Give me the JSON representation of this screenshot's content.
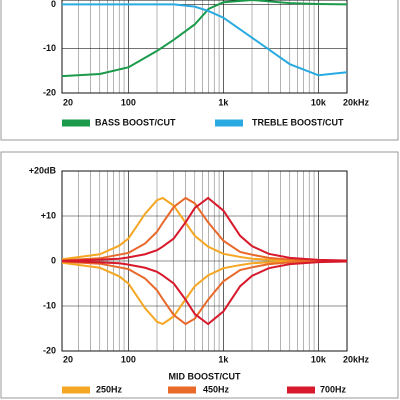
{
  "chart_data": [
    {
      "type": "line",
      "log_x": true,
      "grid": true,
      "minor_grid": true,
      "legend": "bottom",
      "xlim": [
        20,
        20000
      ],
      "ylim": [
        -20,
        1
      ],
      "xticks": [
        20,
        100,
        {
          "value": 1000,
          "label": "1k"
        },
        {
          "value": 10000,
          "label": "10k"
        },
        {
          "value": 20000,
          "label": "20kHz"
        }
      ],
      "yticks": [
        0,
        -10,
        -20
      ],
      "x": [
        20,
        50,
        100,
        200,
        300,
        500,
        700,
        1000,
        2000,
        5000,
        10000,
        20000
      ],
      "series": [
        {
          "name": "BASS BOOST/CUT",
          "color": "#1a9a4a",
          "values": [
            -16.2,
            -15.7,
            -14.2,
            -10.5,
            -8,
            -4.5,
            -1,
            0.5,
            1,
            0.3,
            0.1,
            0
          ]
        },
        {
          "name": "TREBLE BOOST/CUT",
          "color": "#29aae1",
          "values": [
            0,
            0,
            0,
            0,
            0,
            -0.5,
            -1.5,
            -3,
            -7.5,
            -13.5,
            -16,
            -15.3
          ]
        }
      ]
    },
    {
      "type": "line",
      "log_x": true,
      "grid": true,
      "minor_grid": true,
      "legend": "bottom",
      "x_label": "MID BOOST/CUT",
      "xlim": [
        20,
        20000
      ],
      "ylim": [
        -20,
        20
      ],
      "xticks": [
        20,
        100,
        {
          "value": 1000,
          "label": "1k"
        },
        {
          "value": 10000,
          "label": "10k"
        },
        {
          "value": 20000,
          "label": "20kHz"
        }
      ],
      "yticks": [
        {
          "value": 20,
          "label": "+20dB"
        },
        {
          "value": 10,
          "label": "+10"
        },
        0,
        -10,
        -20
      ],
      "x": [
        20,
        50,
        80,
        100,
        150,
        200,
        230,
        300,
        400,
        500,
        690,
        1000,
        1500,
        2000,
        3000,
        5000,
        10000,
        20000
      ],
      "series": [
        {
          "name": "250Hz",
          "color": "#f5a623",
          "values": [
            0.4,
            1.5,
            3.4,
            5,
            10.5,
            13.5,
            14,
            12.3,
            8.5,
            5.6,
            3.2,
            1.6,
            0.9,
            0.5,
            0.3,
            0.1,
            0,
            0
          ],
          "cut_values": [
            -0.4,
            -1.5,
            -3.4,
            -5,
            -10.5,
            -13.5,
            -14,
            -12.3,
            -8.5,
            -5.6,
            -3.2,
            -1.6,
            -0.9,
            -0.5,
            -0.3,
            -0.1,
            0,
            0
          ]
        },
        {
          "name": "450Hz",
          "color": "#e8692a",
          "values": [
            0.15,
            0.6,
            1.4,
            1.8,
            3.9,
            6.5,
            8.5,
            12,
            14,
            12.8,
            8.6,
            4.5,
            2,
            1.4,
            0.7,
            0.3,
            0.1,
            0
          ],
          "cut_values": [
            -0.15,
            -0.6,
            -1.4,
            -1.8,
            -3.9,
            -6.5,
            -8.5,
            -12,
            -14,
            -12.8,
            -8.6,
            -4.5,
            -2,
            -1.4,
            -0.7,
            -0.3,
            -0.1,
            0
          ]
        },
        {
          "name": "700Hz",
          "color": "#d7192b",
          "values": [
            0,
            0.3,
            0.5,
            0.8,
            1.5,
            2.4,
            3.2,
            5,
            8.6,
            11.8,
            14,
            11.2,
            5.6,
            3.3,
            1.6,
            0.7,
            0.25,
            0.1
          ],
          "cut_values": [
            0,
            -0.3,
            -0.5,
            -0.8,
            -1.5,
            -2.4,
            -3.2,
            -5,
            -8.6,
            -11.8,
            -14,
            -11.2,
            -5.6,
            -3.3,
            -1.6,
            -0.7,
            -0.25,
            -0.1
          ]
        }
      ]
    }
  ]
}
